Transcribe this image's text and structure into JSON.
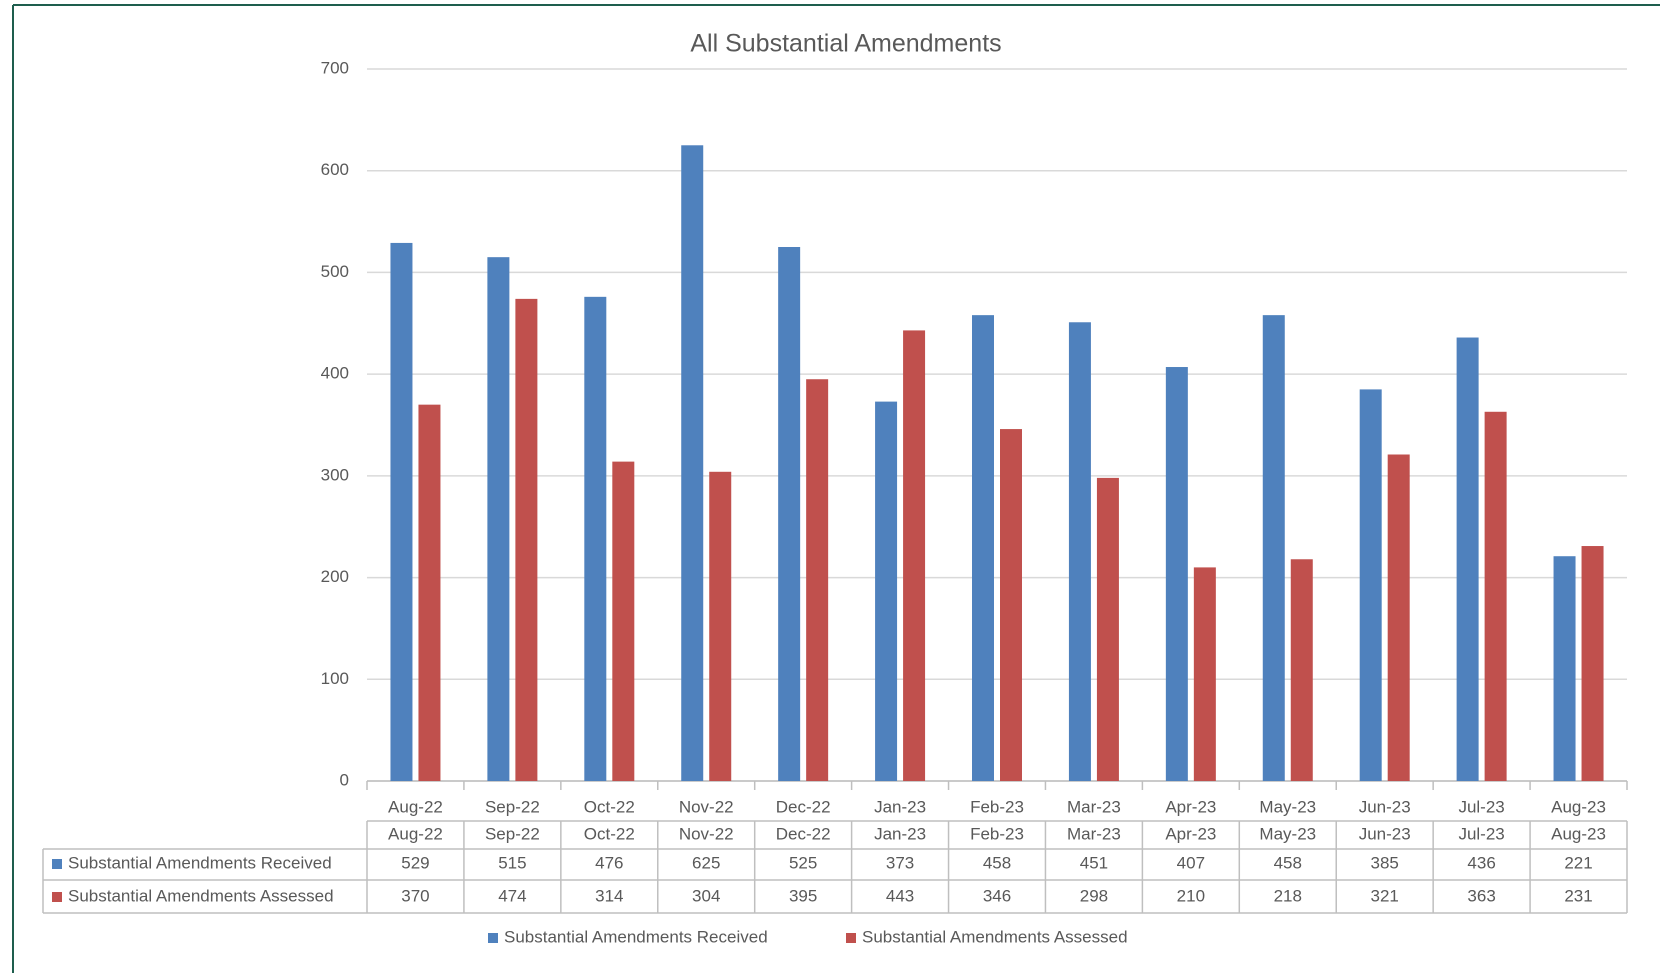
{
  "chart_data": {
    "type": "bar",
    "title": "All Substantial Amendments",
    "categories": [
      "Aug-22",
      "Sep-22",
      "Oct-22",
      "Nov-22",
      "Dec-22",
      "Jan-23",
      "Feb-23",
      "Mar-23",
      "Apr-23",
      "May-23",
      "Jun-23",
      "Jul-23",
      "Aug-23"
    ],
    "series": [
      {
        "name": "Substantial Amendments Received",
        "color": "#4f81bd",
        "values": [
          529,
          515,
          476,
          625,
          525,
          373,
          458,
          451,
          407,
          458,
          385,
          436,
          221
        ]
      },
      {
        "name": "Substantial Amendments Assessed",
        "color": "#c0504d",
        "values": [
          370,
          474,
          314,
          304,
          395,
          443,
          346,
          298,
          210,
          218,
          321,
          363,
          231
        ]
      }
    ],
    "ylim": [
      0,
      700
    ],
    "yticks": [
      0,
      100,
      200,
      300,
      400,
      500,
      600,
      700
    ],
    "grid": true,
    "legend": "bottom",
    "data_table": true
  }
}
